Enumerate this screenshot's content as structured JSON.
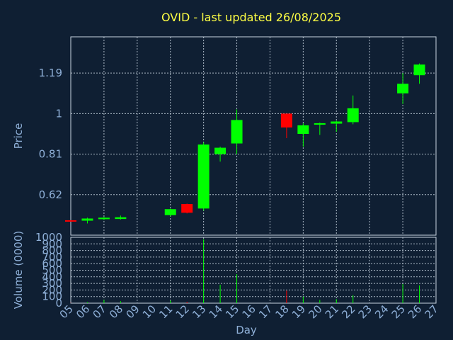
{
  "chart_data": [
    {
      "type": "candlestick",
      "title": "OVID - last updated 26/08/2025",
      "xlabel": "Day",
      "ylabel": "Price",
      "yticks": [
        "0.62",
        "0.81",
        "1",
        "1.19"
      ],
      "ylim": [
        0.43,
        1.36
      ],
      "grid": true,
      "colors": {
        "up": "#00ff00",
        "down": "#ff0000",
        "background": "#0f1f33",
        "title": "#ffff44",
        "axis_text": "#8fb0d8",
        "grid": "#c8d4e0"
      },
      "categories": [
        "05",
        "06",
        "07",
        "08",
        "09",
        "10",
        "11",
        "12",
        "13",
        "14",
        "15",
        "16",
        "17",
        "18",
        "19",
        "20",
        "21",
        "22",
        "23",
        "24",
        "25",
        "26",
        "27"
      ],
      "candles": [
        {
          "day": "05",
          "open": 0.5,
          "close": 0.495,
          "high": 0.5,
          "low": 0.495
        },
        {
          "day": "06",
          "open": 0.498,
          "close": 0.508,
          "high": 0.512,
          "low": 0.485
        },
        {
          "day": "07",
          "open": 0.505,
          "close": 0.512,
          "high": 0.516,
          "low": 0.501
        },
        {
          "day": "08",
          "open": 0.506,
          "close": 0.514,
          "high": 0.522,
          "low": 0.503
        },
        {
          "day": "11",
          "open": 0.524,
          "close": 0.552,
          "high": 0.555,
          "low": 0.518
        },
        {
          "day": "12",
          "open": 0.576,
          "close": 0.535,
          "high": 0.578,
          "low": 0.532
        },
        {
          "day": "13",
          "open": 0.555,
          "close": 0.855,
          "high": 0.865,
          "low": 0.545
        },
        {
          "day": "14",
          "open": 0.81,
          "close": 0.84,
          "high": 0.845,
          "low": 0.775
        },
        {
          "day": "15",
          "open": 0.86,
          "close": 0.97,
          "high": 1.02,
          "low": 0.81
        },
        {
          "day": "18",
          "open": 1.0,
          "close": 0.935,
          "high": 1.0,
          "low": 0.885
        },
        {
          "day": "19",
          "open": 0.905,
          "close": 0.945,
          "high": 0.955,
          "low": 0.845
        },
        {
          "day": "20",
          "open": 0.948,
          "close": 0.955,
          "high": 0.958,
          "low": 0.9
        },
        {
          "day": "21",
          "open": 0.953,
          "close": 0.963,
          "high": 0.966,
          "low": 0.915
        },
        {
          "day": "22",
          "open": 0.96,
          "close": 1.025,
          "high": 1.085,
          "low": 0.95
        },
        {
          "day": "25",
          "open": 1.095,
          "close": 1.14,
          "high": 1.19,
          "low": 1.045
        },
        {
          "day": "26",
          "open": 1.18,
          "close": 1.23,
          "high": 1.235,
          "low": 1.14
        }
      ]
    },
    {
      "type": "bar",
      "ylabel": "Volume (0000)",
      "yticks": [
        "0",
        "100",
        "200",
        "300",
        "400",
        "500",
        "600",
        "700",
        "800",
        "900",
        "1000"
      ],
      "ylim": [
        0,
        1000
      ],
      "grid": true,
      "categories": [
        "05",
        "06",
        "07",
        "08",
        "09",
        "10",
        "11",
        "12",
        "13",
        "14",
        "15",
        "16",
        "17",
        "18",
        "19",
        "20",
        "21",
        "22",
        "23",
        "24",
        "25",
        "26",
        "27"
      ],
      "volumes": [
        {
          "day": "05",
          "value": 4,
          "up": false
        },
        {
          "day": "06",
          "value": 15,
          "up": true
        },
        {
          "day": "07",
          "value": 50,
          "up": true
        },
        {
          "day": "08",
          "value": 30,
          "up": true
        },
        {
          "day": "11",
          "value": 40,
          "up": true
        },
        {
          "day": "12",
          "value": 20,
          "up": false
        },
        {
          "day": "13",
          "value": 970,
          "up": true
        },
        {
          "day": "14",
          "value": 280,
          "up": true
        },
        {
          "day": "15",
          "value": 440,
          "up": true
        },
        {
          "day": "18",
          "value": 190,
          "up": false
        },
        {
          "day": "19",
          "value": 100,
          "up": true
        },
        {
          "day": "20",
          "value": 50,
          "up": true
        },
        {
          "day": "21",
          "value": 60,
          "up": true
        },
        {
          "day": "22",
          "value": 120,
          "up": true
        },
        {
          "day": "25",
          "value": 290,
          "up": true
        },
        {
          "day": "26",
          "value": 270,
          "up": true
        }
      ]
    }
  ]
}
